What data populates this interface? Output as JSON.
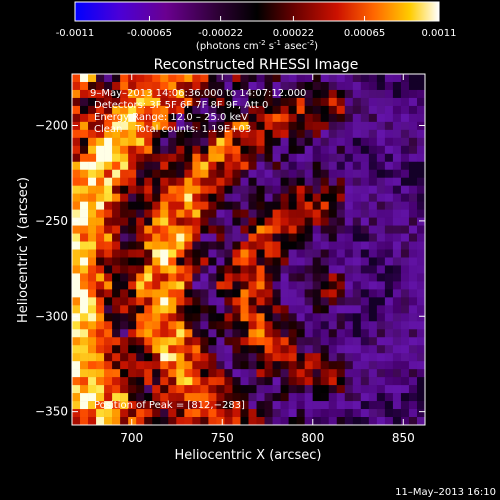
{
  "colorbar": {
    "tick_labels": [
      "-0.0011",
      "-0.00065",
      "-0.00022",
      "0.00022",
      "0.00065",
      "0.0011"
    ],
    "tick_values": [
      -0.0011,
      -0.00065,
      -0.00022,
      0.00022,
      0.00065,
      0.0011
    ],
    "range": [
      -0.0011,
      0.0011
    ],
    "units_prefix": "(photons cm",
    "units_exp1": "-2",
    "units_mid": " s",
    "units_exp2": "-1",
    "units_mid2": " asec",
    "units_exp3": "-2",
    "units_suffix": ")",
    "colors": [
      "#0000ff",
      "#5a00c8",
      "#6a0090",
      "#3a0040",
      "#000000",
      "#550000",
      "#b00000",
      "#ff3300",
      "#ff8c00",
      "#ffd700",
      "#ffffff"
    ]
  },
  "chart_data": {
    "type": "heatmap",
    "title": "Reconstructed RHESSI Image",
    "xlabel": "Heliocentric X (arcsec)",
    "ylabel": "Heliocentric Y (arcsec)",
    "xlim": [
      667,
      862
    ],
    "ylim": [
      -357,
      -173
    ],
    "x_ticks": [
      700,
      750,
      800,
      850
    ],
    "x_tick_labels": [
      "700",
      "750",
      "800",
      "850"
    ],
    "y_ticks": [
      -200,
      -250,
      -300,
      -350
    ],
    "y_tick_labels": [
      "−200",
      "−250",
      "−300",
      "−350"
    ],
    "peak_position": [
      812,
      -283
    ],
    "annotations": {
      "time_range": "9–May–2013 14:06:36.000 to 14:07:12.000",
      "detectors": "Detectors: 3F 5F 6F 7F 8F 9F, Att 0",
      "energy_range": "Energy Range: 12.0 – 25.0 keV",
      "clean_line": "Clean    Total counts: 1.19E+03",
      "peak_label": "Position of Peak = [812,−283]"
    }
  },
  "footer": {
    "timestamp": "11–May–2013 16:10"
  }
}
